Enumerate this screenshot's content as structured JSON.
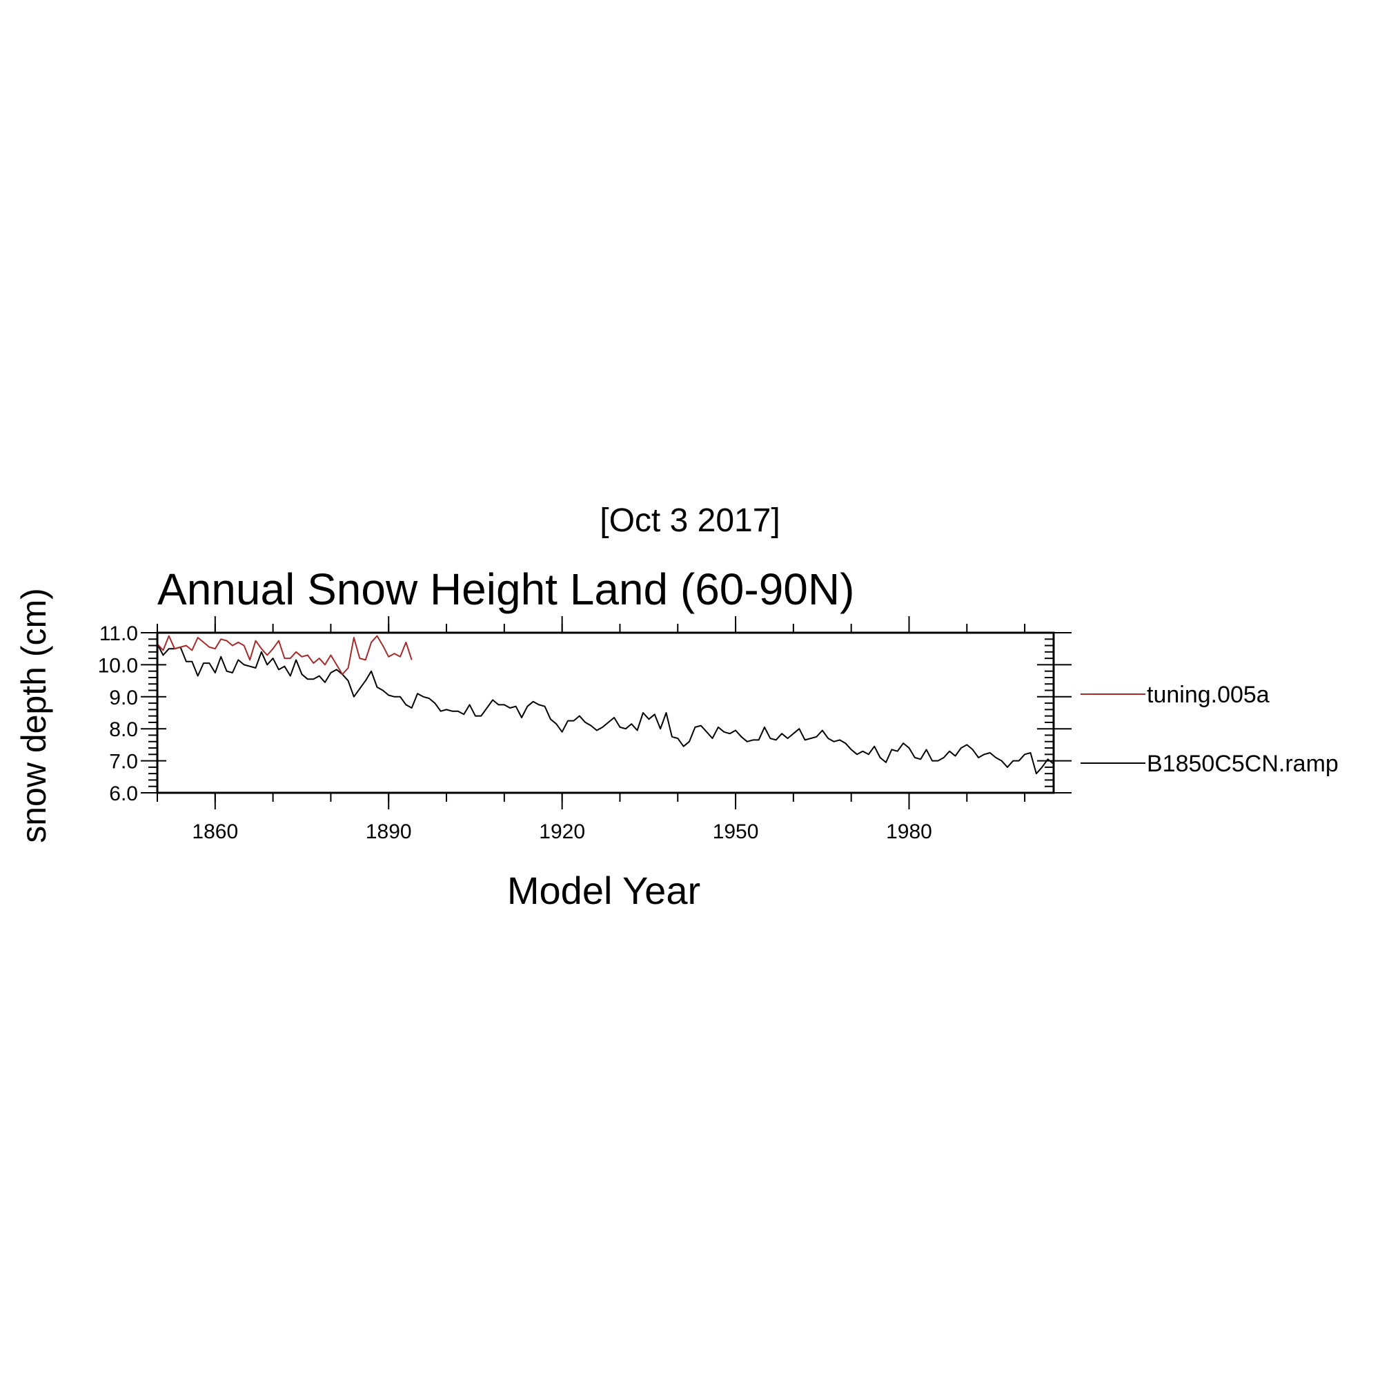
{
  "chart_data": {
    "type": "line",
    "date_stamp": "[Oct  3 2017]",
    "title": "Annual Snow Height Land (60-90N)",
    "xlabel": "Model Year",
    "ylabel": "snow depth (cm)",
    "xlim": [
      1850,
      2005
    ],
    "ylim": [
      6.0,
      11.0
    ],
    "x_ticks": [
      1860,
      1890,
      1920,
      1950,
      1980
    ],
    "y_ticks": [
      "6.0",
      "7.0",
      "8.0",
      "9.0",
      "10.0",
      "11.0"
    ],
    "legend_position": "right",
    "series": [
      {
        "name": "tuning.005a",
        "color": "#a52a2a",
        "x_start": 1850,
        "values": [
          10.65,
          10.45,
          10.9,
          10.5,
          10.55,
          10.6,
          10.45,
          10.85,
          10.7,
          10.55,
          10.5,
          10.8,
          10.75,
          10.6,
          10.7,
          10.6,
          10.15,
          10.75,
          10.5,
          10.3,
          10.5,
          10.75,
          10.2,
          10.2,
          10.4,
          10.25,
          10.3,
          10.05,
          10.2,
          10.0,
          10.3,
          10.0,
          9.7,
          9.9,
          10.85,
          10.2,
          10.15,
          10.7,
          10.9,
          10.6,
          10.25,
          10.35,
          10.25,
          10.7,
          10.15
        ]
      },
      {
        "name": "B1850C5CN.ramp",
        "color": "#000000",
        "x_start": 1850,
        "values": [
          10.65,
          10.3,
          10.5,
          10.5,
          10.55,
          10.1,
          10.1,
          9.65,
          10.05,
          10.05,
          9.75,
          10.25,
          9.8,
          9.75,
          10.15,
          10.0,
          9.95,
          9.9,
          10.4,
          10.0,
          10.2,
          9.85,
          9.95,
          9.65,
          10.15,
          9.7,
          9.55,
          9.55,
          9.65,
          9.45,
          9.75,
          9.85,
          9.7,
          9.5,
          9.0,
          9.25,
          9.5,
          9.8,
          9.3,
          9.2,
          9.05,
          9.0,
          9.0,
          8.75,
          8.65,
          9.1,
          9.0,
          8.95,
          8.8,
          8.55,
          8.6,
          8.55,
          8.55,
          8.45,
          8.75,
          8.4,
          8.4,
          8.65,
          8.9,
          8.75,
          8.75,
          8.65,
          8.7,
          8.35,
          8.7,
          8.85,
          8.75,
          8.7,
          8.3,
          8.15,
          7.9,
          8.25,
          8.25,
          8.4,
          8.2,
          8.1,
          7.95,
          8.05,
          8.2,
          8.35,
          8.05,
          8.0,
          8.15,
          7.95,
          8.5,
          8.3,
          8.45,
          8.0,
          8.5,
          7.75,
          7.7,
          7.45,
          7.6,
          8.05,
          8.1,
          7.9,
          7.7,
          8.05,
          7.9,
          7.85,
          7.95,
          7.75,
          7.6,
          7.65,
          7.65,
          8.05,
          7.7,
          7.65,
          7.85,
          7.7,
          7.85,
          8.0,
          7.65,
          7.7,
          7.75,
          7.95,
          7.7,
          7.6,
          7.65,
          7.55,
          7.35,
          7.2,
          7.3,
          7.2,
          7.45,
          7.1,
          6.95,
          7.35,
          7.3,
          7.55,
          7.4,
          7.1,
          7.05,
          7.35,
          7.0,
          7.0,
          7.1,
          7.3,
          7.15,
          7.4,
          7.5,
          7.35,
          7.1,
          7.2,
          7.25,
          7.1,
          7.0,
          6.8,
          7.0,
          7.0,
          7.2,
          7.25,
          6.6,
          6.8,
          7.05,
          6.9
        ]
      }
    ]
  }
}
